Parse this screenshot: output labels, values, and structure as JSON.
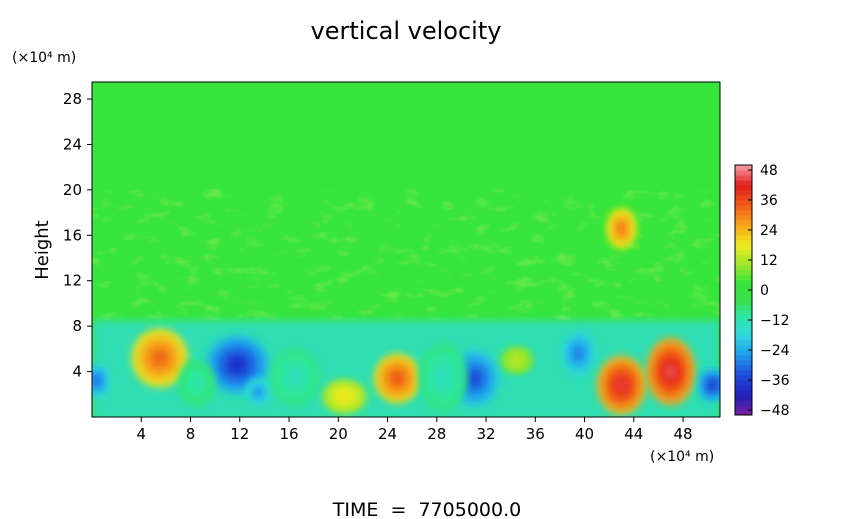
{
  "chart_data": {
    "type": "heatmap",
    "title": "vertical velocity",
    "ylabel": "Height",
    "y_unit": "(×10⁴ m)",
    "x_unit": "(×10⁴ m)",
    "footer": "TIME  =  7705000.0",
    "xlim": [
      0,
      51
    ],
    "ylim": [
      0,
      29.5
    ],
    "x_ticks": [
      "4",
      "8",
      "12",
      "16",
      "20",
      "24",
      "28",
      "32",
      "36",
      "40",
      "44",
      "48"
    ],
    "y_ticks": [
      "4",
      "8",
      "12",
      "16",
      "20",
      "24",
      "28"
    ],
    "colorbar": {
      "min": -50,
      "max": 50,
      "tick_labels": [
        "48",
        "36",
        "24",
        "12",
        "0",
        "−12",
        "−24",
        "−36",
        "−48"
      ],
      "tick_values": [
        48,
        36,
        24,
        12,
        0,
        -12,
        -24,
        -36,
        -48
      ],
      "stops": [
        [
          -50,
          "#7a1fa0"
        ],
        [
          -42,
          "#1f1fb8"
        ],
        [
          -34,
          "#1f4bdc"
        ],
        [
          -26,
          "#1e9bef"
        ],
        [
          -18,
          "#2fd9e0"
        ],
        [
          -10,
          "#2ee8a0"
        ],
        [
          -4,
          "#3be04a"
        ],
        [
          3,
          "#36e63a"
        ],
        [
          10,
          "#9be62a"
        ],
        [
          18,
          "#f0ec1e"
        ],
        [
          26,
          "#f7a51a"
        ],
        [
          34,
          "#f25c18"
        ],
        [
          42,
          "#e21c1c"
        ],
        [
          50,
          "#f4a0a8"
        ]
      ]
    },
    "background_value": 2,
    "features": [
      {
        "x": 5.5,
        "y": 5.2,
        "rx": 2.3,
        "ry": 2.6,
        "value": 34
      },
      {
        "x": 11.8,
        "y": 4.6,
        "rx": 2.6,
        "ry": 2.6,
        "value": -40
      },
      {
        "x": 13.5,
        "y": 2.2,
        "rx": 1.0,
        "ry": 1.2,
        "value": -28
      },
      {
        "x": 20.5,
        "y": 1.8,
        "rx": 1.8,
        "ry": 1.5,
        "value": 20
      },
      {
        "x": 24.8,
        "y": 3.4,
        "rx": 1.9,
        "ry": 2.2,
        "value": 36
      },
      {
        "x": 31.0,
        "y": 3.4,
        "rx": 2.1,
        "ry": 2.5,
        "value": -36
      },
      {
        "x": 34.5,
        "y": 5.0,
        "rx": 1.3,
        "ry": 1.2,
        "value": 14
      },
      {
        "x": 39.5,
        "y": 5.6,
        "rx": 1.4,
        "ry": 2.0,
        "value": -30
      },
      {
        "x": 43.0,
        "y": 2.8,
        "rx": 2.0,
        "ry": 2.6,
        "value": 44
      },
      {
        "x": 47.0,
        "y": 4.0,
        "rx": 2.0,
        "ry": 3.0,
        "value": 46
      },
      {
        "x": 50.4,
        "y": 2.8,
        "rx": 1.2,
        "ry": 1.5,
        "value": -38
      },
      {
        "x": 0.4,
        "y": 3.2,
        "rx": 1.0,
        "ry": 1.5,
        "value": -32
      },
      {
        "x": 43.0,
        "y": 16.6,
        "rx": 1.2,
        "ry": 1.8,
        "value": 32
      },
      {
        "x": 8.5,
        "y": 3.0,
        "rx": 1.5,
        "ry": 2.0,
        "value": -12
      },
      {
        "x": 28.5,
        "y": 3.5,
        "rx": 2.0,
        "ry": 3.0,
        "value": -14
      },
      {
        "x": 16.5,
        "y": 3.5,
        "rx": 2.0,
        "ry": 2.5,
        "value": -14
      }
    ],
    "lower_layer": {
      "top": 8.5,
      "value": -16
    }
  }
}
